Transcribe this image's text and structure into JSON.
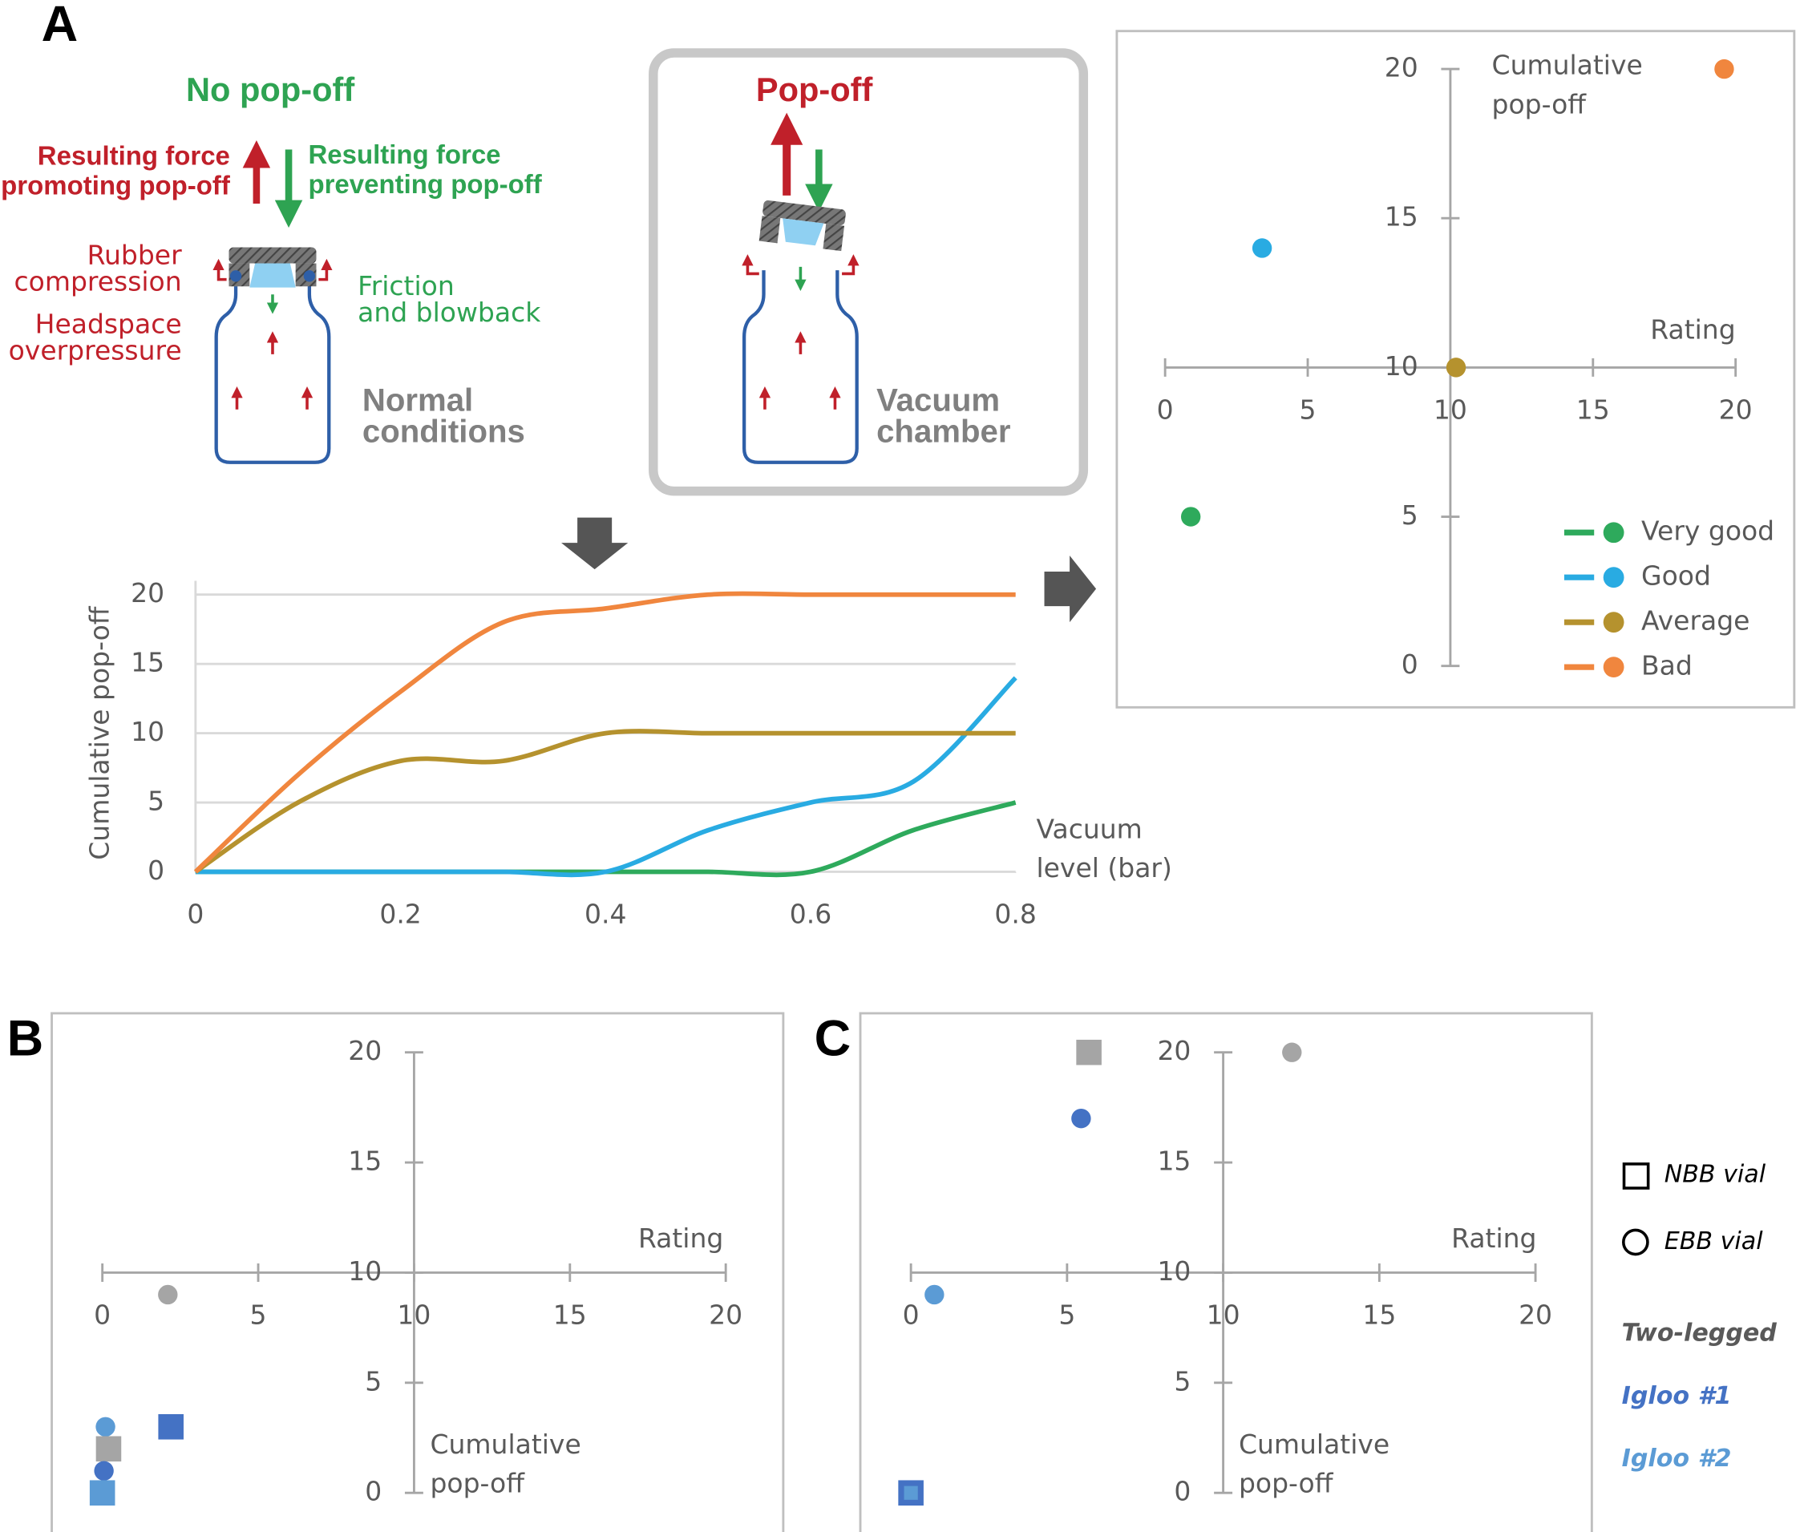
{
  "panels": [
    "A",
    "B",
    "C"
  ],
  "diagram": {
    "left_title": "No pop-off",
    "promoting": [
      "Resulting force",
      "promoting pop-off"
    ],
    "preventing": [
      "Resulting force",
      "preventing pop-off"
    ],
    "rubber": [
      "Rubber",
      "compression"
    ],
    "headspace": [
      "Headspace",
      "overpressure"
    ],
    "friction": [
      "Friction",
      "and blowback"
    ],
    "normal": [
      "Normal",
      "conditions"
    ],
    "right_title": "Pop-off",
    "vacuum": [
      "Vacuum",
      "chamber"
    ]
  },
  "chart_data": [
    {
      "type": "line",
      "ylabel": "Cumulative pop-off",
      "xlabel": [
        "Vacuum",
        "level (bar)"
      ],
      "x": [
        0,
        0.1,
        0.2,
        0.3,
        0.4,
        0.5,
        0.6,
        0.7,
        0.8
      ],
      "xlim": [
        0,
        0.8
      ],
      "xticks": [
        0,
        0.2,
        0.4,
        0.6,
        0.8
      ],
      "ylim": [
        0,
        20
      ],
      "yticks": [
        0,
        5,
        10,
        15,
        20
      ],
      "grid": true,
      "series": [
        {
          "name": "Very good",
          "color": "#2eaa5c",
          "values": [
            0,
            0,
            0,
            0,
            0,
            0,
            0,
            3,
            5
          ]
        },
        {
          "name": "Good",
          "color": "#29abe2",
          "values": [
            0,
            0,
            0,
            0,
            0,
            3,
            5,
            6.5,
            14
          ]
        },
        {
          "name": "Average",
          "color": "#b5922e",
          "values": [
            0,
            5,
            8,
            8,
            10,
            10,
            10,
            10,
            10
          ]
        },
        {
          "name": "Bad",
          "color": "#f0863e",
          "values": [
            0,
            7,
            13,
            18,
            19,
            20,
            20,
            20,
            20
          ]
        }
      ]
    },
    {
      "type": "scatter",
      "xlabel": "Rating",
      "ylabel": [
        "Cumulative",
        "pop-off"
      ],
      "xlim": [
        0,
        20
      ],
      "xticks": [
        0,
        5,
        10,
        15,
        20
      ],
      "ylim": [
        0,
        20
      ],
      "yticks": [
        0,
        5,
        10,
        15,
        20
      ],
      "cross": [
        10,
        10
      ],
      "points": [
        {
          "x": 0.9,
          "y": 5,
          "color": "#2eaa5c",
          "shape": "circle"
        },
        {
          "x": 3.4,
          "y": 14,
          "color": "#29abe2",
          "shape": "circle"
        },
        {
          "x": 10.2,
          "y": 10,
          "color": "#b5922e",
          "shape": "circle"
        },
        {
          "x": 19.6,
          "y": 20,
          "color": "#f0863e",
          "shape": "circle"
        }
      ]
    },
    {
      "type": "scatter",
      "xlabel": "Rating",
      "ylabel": [
        "Cumulative",
        "pop-off"
      ],
      "xlim": [
        0,
        20
      ],
      "xticks": [
        0,
        5,
        10,
        15,
        20
      ],
      "ylim": [
        0,
        20
      ],
      "yticks": [
        0,
        5,
        10,
        15,
        20
      ],
      "cross": [
        10,
        10
      ],
      "points": [
        {
          "x": 2.1,
          "y": 9,
          "color": "#a5a5a5",
          "shape": "circle"
        },
        {
          "x": 2.2,
          "y": 3,
          "color": "#4472c4",
          "shape": "square"
        },
        {
          "x": 0.1,
          "y": 3,
          "color": "#5b9bd5",
          "shape": "circle"
        },
        {
          "x": 0.2,
          "y": 2,
          "color": "#a5a5a5",
          "shape": "square"
        },
        {
          "x": 0.05,
          "y": 1,
          "color": "#4472c4",
          "shape": "circle"
        },
        {
          "x": 0,
          "y": 0,
          "color": "#5b9bd5",
          "shape": "square"
        }
      ]
    },
    {
      "type": "scatter",
      "xlabel": "Rating",
      "ylabel": [
        "Cumulative",
        "pop-off"
      ],
      "xlim": [
        0,
        20
      ],
      "xticks": [
        0,
        5,
        10,
        15,
        20
      ],
      "ylim": [
        0,
        20
      ],
      "yticks": [
        0,
        5,
        10,
        15,
        20
      ],
      "cross": [
        10,
        10
      ],
      "points": [
        {
          "x": 5.7,
          "y": 20,
          "color": "#a5a5a5",
          "shape": "square"
        },
        {
          "x": 12.2,
          "y": 20,
          "color": "#a5a5a5",
          "shape": "circle"
        },
        {
          "x": 5.45,
          "y": 17,
          "color": "#4472c4",
          "shape": "circle"
        },
        {
          "x": 0.75,
          "y": 9,
          "color": "#5b9bd5",
          "shape": "circle"
        },
        {
          "x": 0,
          "y": 0,
          "color": "#4472c4",
          "shape": "square"
        },
        {
          "x": 0,
          "y": 0,
          "color": "#5b9bd5",
          "shape": "square-inner"
        }
      ]
    }
  ],
  "legend_bc": {
    "shapes": [
      {
        "label": "NBB vial",
        "shape": "square"
      },
      {
        "label": "EBB vial",
        "shape": "circle"
      }
    ],
    "groups": [
      {
        "label": "Two-legged",
        "color": "#595959"
      },
      {
        "label": "Igloo #1",
        "color": "#4472c4"
      },
      {
        "label": "Igloo #2",
        "color": "#5b9bd5"
      }
    ]
  }
}
